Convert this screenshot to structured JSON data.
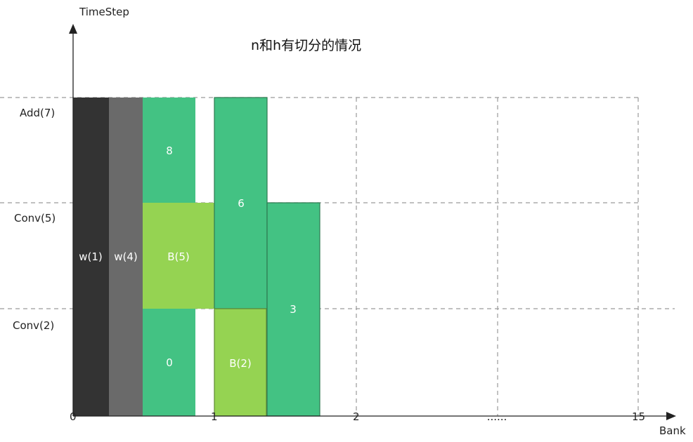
{
  "title": "n和h有切分的情况",
  "axes": {
    "y_label": "TimeStep",
    "x_label": "Bank",
    "y_ticks": [
      "Add(7)",
      "Conv(5)",
      "Conv(2)"
    ],
    "x_ticks": [
      "0",
      "1",
      "2",
      "......",
      "15"
    ]
  },
  "blocks": [
    {
      "id": "w1",
      "label": "w(1)",
      "color": "#333333"
    },
    {
      "id": "w4",
      "label": "w(4)",
      "color": "#6a6a6a"
    },
    {
      "id": "b8",
      "label": "8",
      "color": "#43c283"
    },
    {
      "id": "b0",
      "label": "0",
      "color": "#43c283"
    },
    {
      "id": "B5",
      "label": "B(5)",
      "color": "#95d352"
    },
    {
      "id": "b6",
      "label": "6",
      "color": "#43c283"
    },
    {
      "id": "B2",
      "label": "B(2)",
      "color": "#95d352"
    },
    {
      "id": "b3",
      "label": "3",
      "color": "#43c283"
    }
  ]
}
